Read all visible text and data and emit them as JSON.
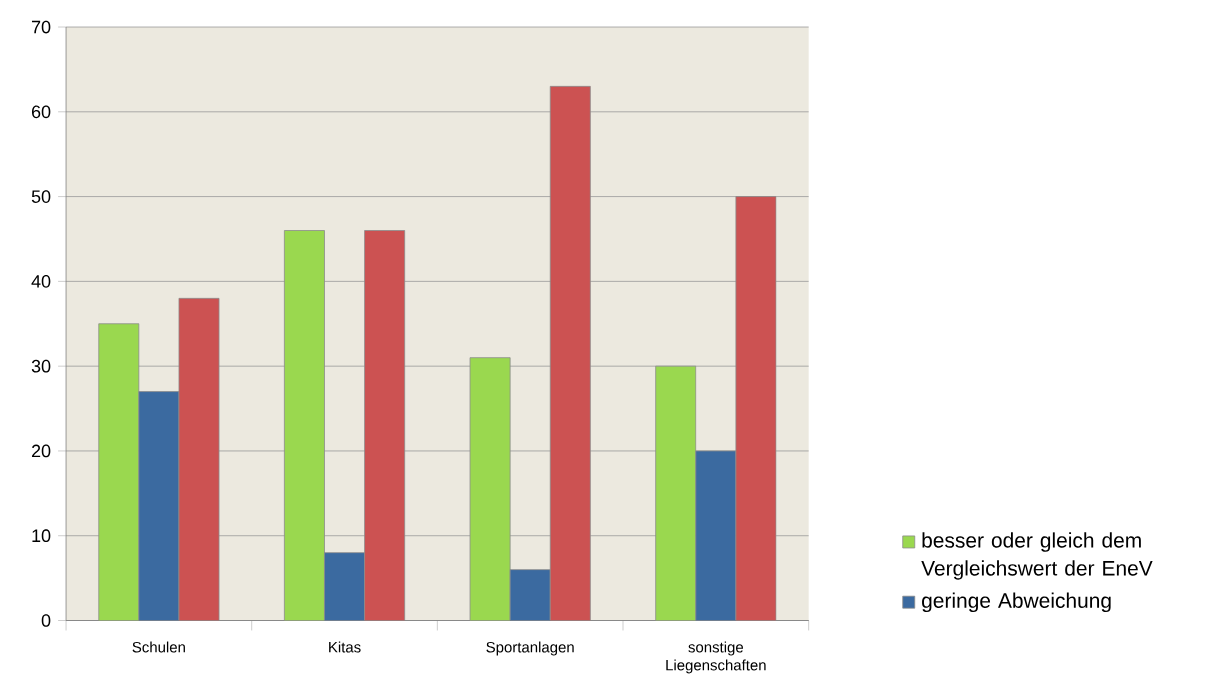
{
  "chart_data": {
    "type": "bar",
    "categories": [
      "Schulen",
      "Kitas",
      "Sportanlagen",
      "sonstige Liegenschaften"
    ],
    "series": [
      {
        "name": "besser oder gleich dem Vergleichswert der EneV",
        "color": "#9ad84f",
        "values": [
          35,
          46,
          31,
          30
        ]
      },
      {
        "name": "geringe Abweichung",
        "color": "#3b6aa0",
        "values": [
          27,
          8,
          6,
          20
        ]
      },
      {
        "color": "#cc5252",
        "values": [
          38,
          46,
          63,
          50
        ]
      }
    ],
    "ylim": [
      0,
      70
    ],
    "yticks": [
      0,
      10,
      20,
      30,
      40,
      50,
      60,
      70
    ],
    "grid": "y",
    "legend": "bottom right"
  }
}
